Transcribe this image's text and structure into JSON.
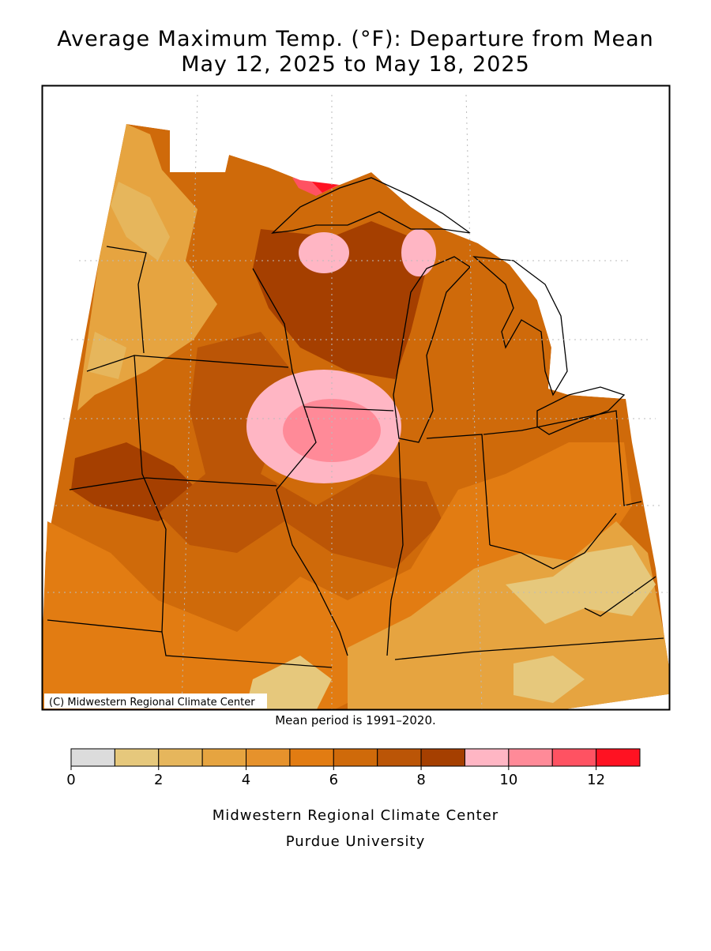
{
  "title": [
    "Average Maximum Temp. (°F): Departure from Mean",
    "May 12, 2025 to May 18, 2025"
  ],
  "copyright": "(C) Midwestern Regional Climate Center",
  "note": "Mean period is 1991–2020.",
  "legend": {
    "bounds": [
      0,
      1,
      2,
      3,
      4,
      5,
      6,
      7,
      8,
      9,
      10,
      11,
      12,
      13
    ],
    "colors": [
      "#dcdcdc",
      "#e6c87c",
      "#e6b65c",
      "#e6a440",
      "#e6922c",
      "#e27c12",
      "#cf6a0a",
      "#bb5506",
      "#a53f00",
      "#ffb6c4",
      "#ff8a98",
      "#ff5262",
      "#ff1222"
    ],
    "ticks": [
      0,
      2,
      4,
      6,
      8,
      10,
      12
    ]
  },
  "footer": [
    "Midwestern Regional Climate Center",
    "Purdue University"
  ]
}
